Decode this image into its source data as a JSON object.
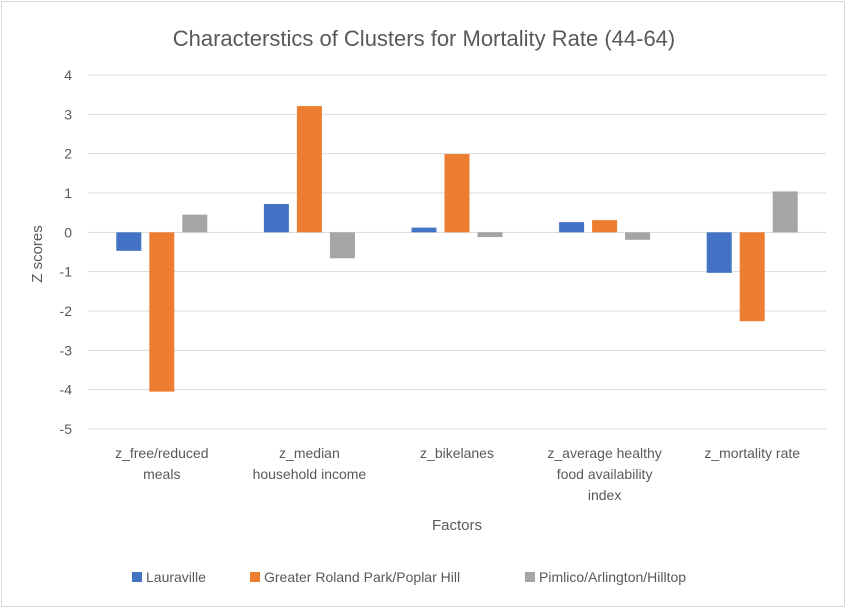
{
  "chart_data": {
    "type": "bar",
    "title": "Characterstics of Clusters for Mortality Rate (44-64)",
    "xlabel": "Factors",
    "ylabel": "Z scores",
    "ylim": [
      -5,
      4
    ],
    "yticks": [
      "4",
      "3",
      "2",
      "1",
      "0",
      "-1",
      "-2",
      "-3",
      "-4",
      "-5"
    ],
    "grid": true,
    "legend_position": "bottom",
    "categories": [
      [
        "z_free/reduced",
        "meals"
      ],
      [
        "z_median",
        "household income"
      ],
      [
        "z_bikelanes"
      ],
      [
        "z_average healthy",
        "food availability",
        "index"
      ],
      [
        "z_mortality rate"
      ]
    ],
    "series": [
      {
        "name": "Lauraville",
        "color": "#4472c4",
        "values": [
          -0.47,
          0.72,
          0.12,
          0.26,
          -1.03
        ]
      },
      {
        "name": "Greater Roland Park/Poplar Hill",
        "color": "#ed7d31",
        "values": [
          -4.05,
          3.21,
          1.99,
          0.31,
          -2.26
        ]
      },
      {
        "name": "Pimlico/Arlington/Hilltop",
        "color": "#a5a5a5",
        "values": [
          0.45,
          -0.66,
          -0.12,
          -0.19,
          1.04
        ]
      }
    ]
  }
}
